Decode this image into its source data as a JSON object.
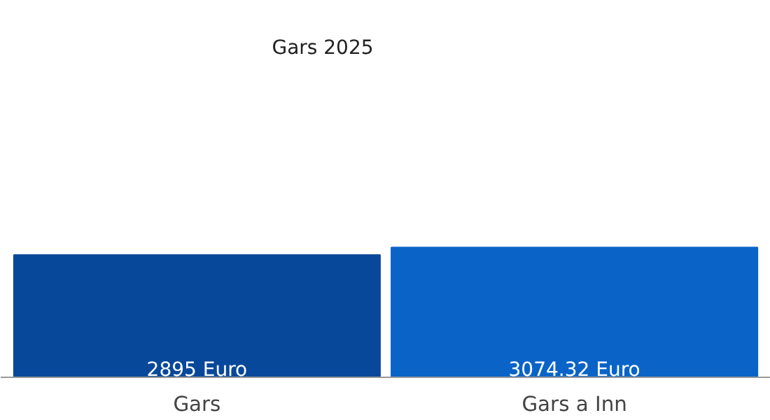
{
  "chart_data": {
    "type": "bar",
    "title": "Gars 2025",
    "categories": [
      "Gars",
      "Gars a Inn"
    ],
    "values": [
      2895,
      3074.32
    ],
    "colors": [
      "#08489a",
      "#0a64c8"
    ],
    "value_labels": [
      "2895 Euro",
      "3074.32 Euro"
    ],
    "grid": false,
    "tick_labels": "x"
  }
}
